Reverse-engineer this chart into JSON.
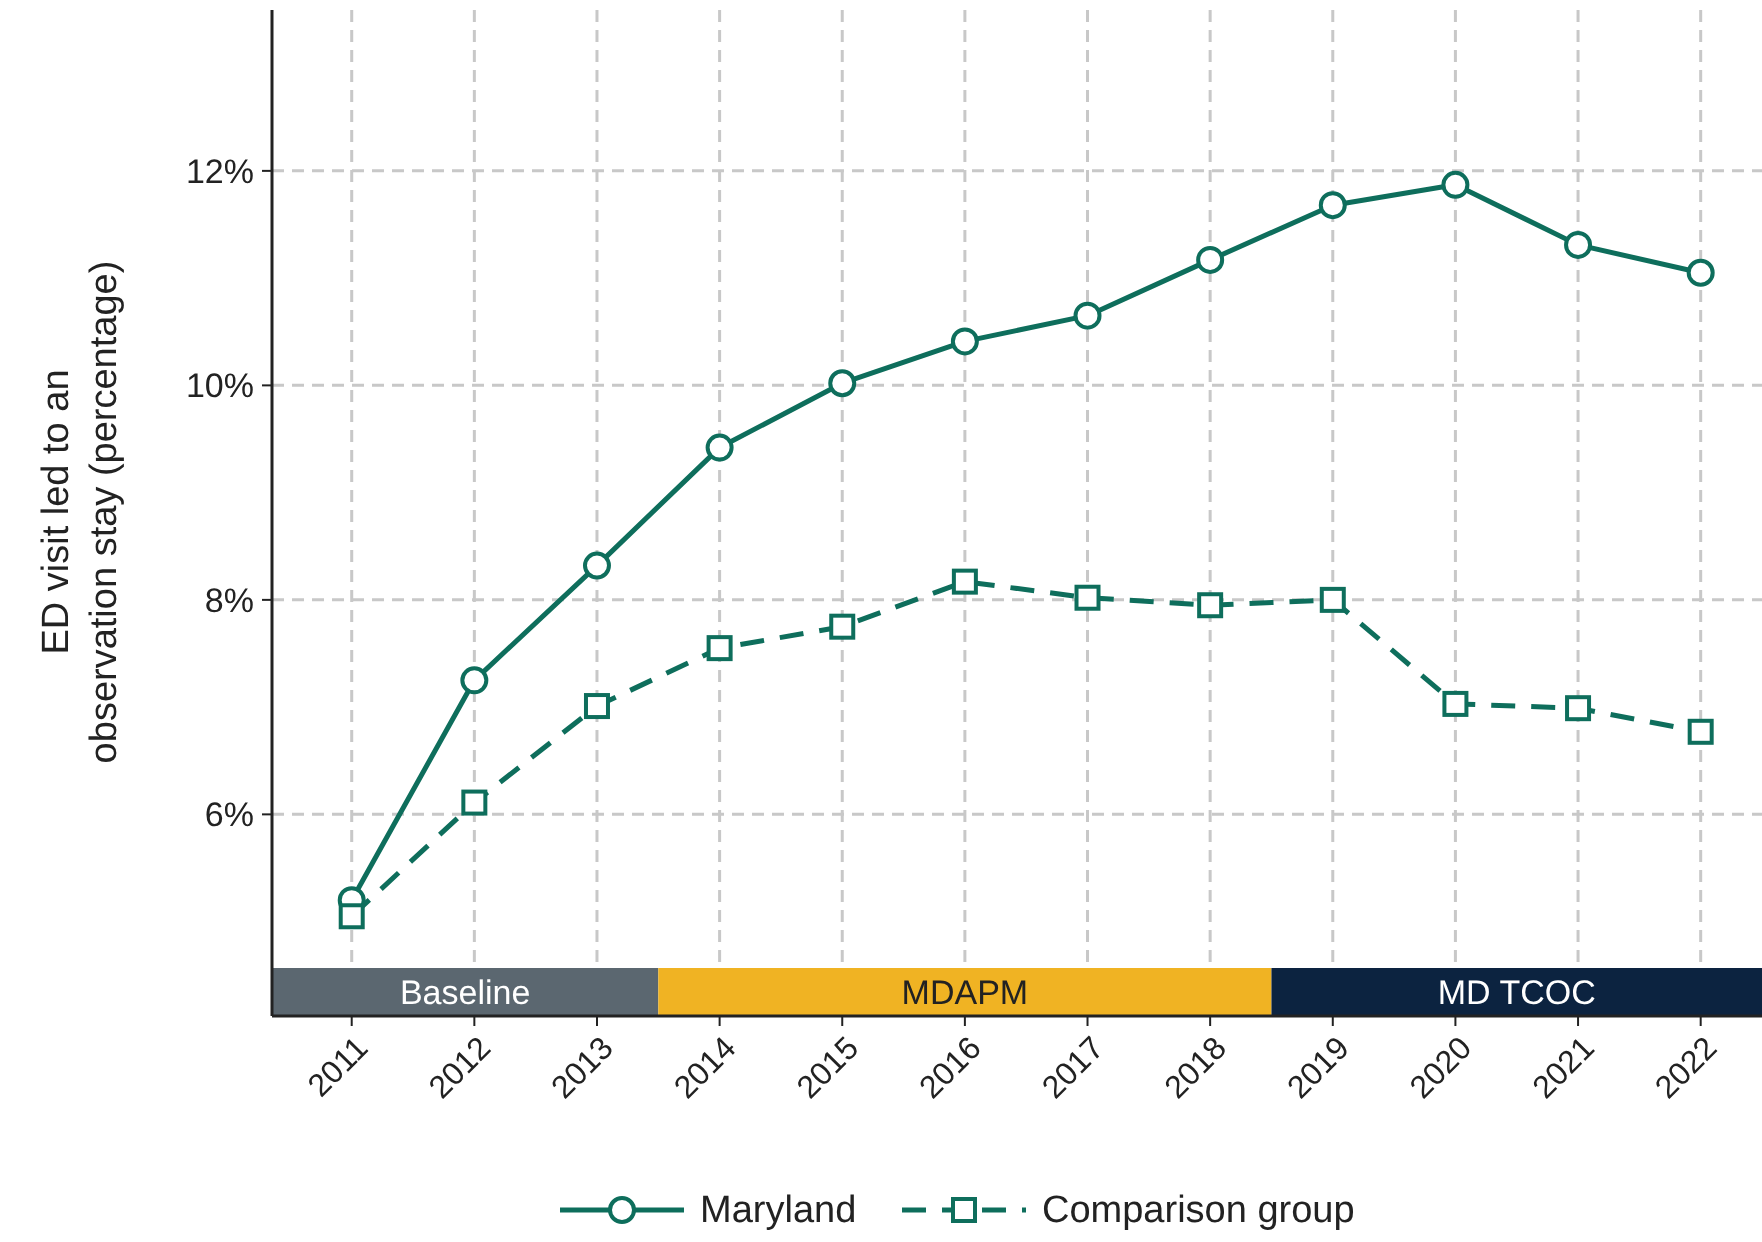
{
  "chart_data": {
    "type": "line",
    "ylabel": "ED visit led to an\nobservation stay (percentage)",
    "x": [
      2011,
      2012,
      2013,
      2014,
      2015,
      2016,
      2017,
      2018,
      2019,
      2020,
      2021,
      2022
    ],
    "xlim": [
      2010.35,
      2022.5
    ],
    "xticks": [
      2011,
      2012,
      2013,
      2014,
      2015,
      2016,
      2017,
      2018,
      2019,
      2020,
      2021,
      2022
    ],
    "ylim": [
      4.12,
      13.5
    ],
    "yticks": [
      {
        "value": 6,
        "label": "6%"
      },
      {
        "value": 8,
        "label": "8%"
      },
      {
        "value": 10,
        "label": "10%"
      },
      {
        "value": 12,
        "label": "12%"
      }
    ],
    "grid": true,
    "legend": "bottom",
    "series": [
      {
        "name": "Maryland",
        "color": "#0e6e5c",
        "marker": "circle",
        "line_style": "solid",
        "values": [
          5.2,
          7.25,
          8.32,
          9.42,
          10.02,
          10.41,
          10.65,
          11.17,
          11.68,
          11.87,
          11.31,
          11.05
        ]
      },
      {
        "name": "Comparison group",
        "color": "#0e6e5c",
        "marker": "square",
        "line_style": "dashed",
        "values": [
          5.05,
          6.11,
          7.01,
          7.55,
          7.75,
          8.17,
          8.02,
          7.95,
          8.0,
          7.03,
          6.99,
          6.77
        ]
      }
    ],
    "bands": [
      {
        "axis": "x",
        "from": 2010.35,
        "to": 2013.5,
        "label": "Baseline",
        "color": "#5b6770"
      },
      {
        "axis": "x",
        "from": 2013.5,
        "to": 2018.5,
        "label": "MDAPM",
        "color": "#f0b323"
      },
      {
        "axis": "x",
        "from": 2018.5,
        "to": 2022.5,
        "label": "MD TCOC",
        "color": "#0c2340"
      }
    ]
  }
}
